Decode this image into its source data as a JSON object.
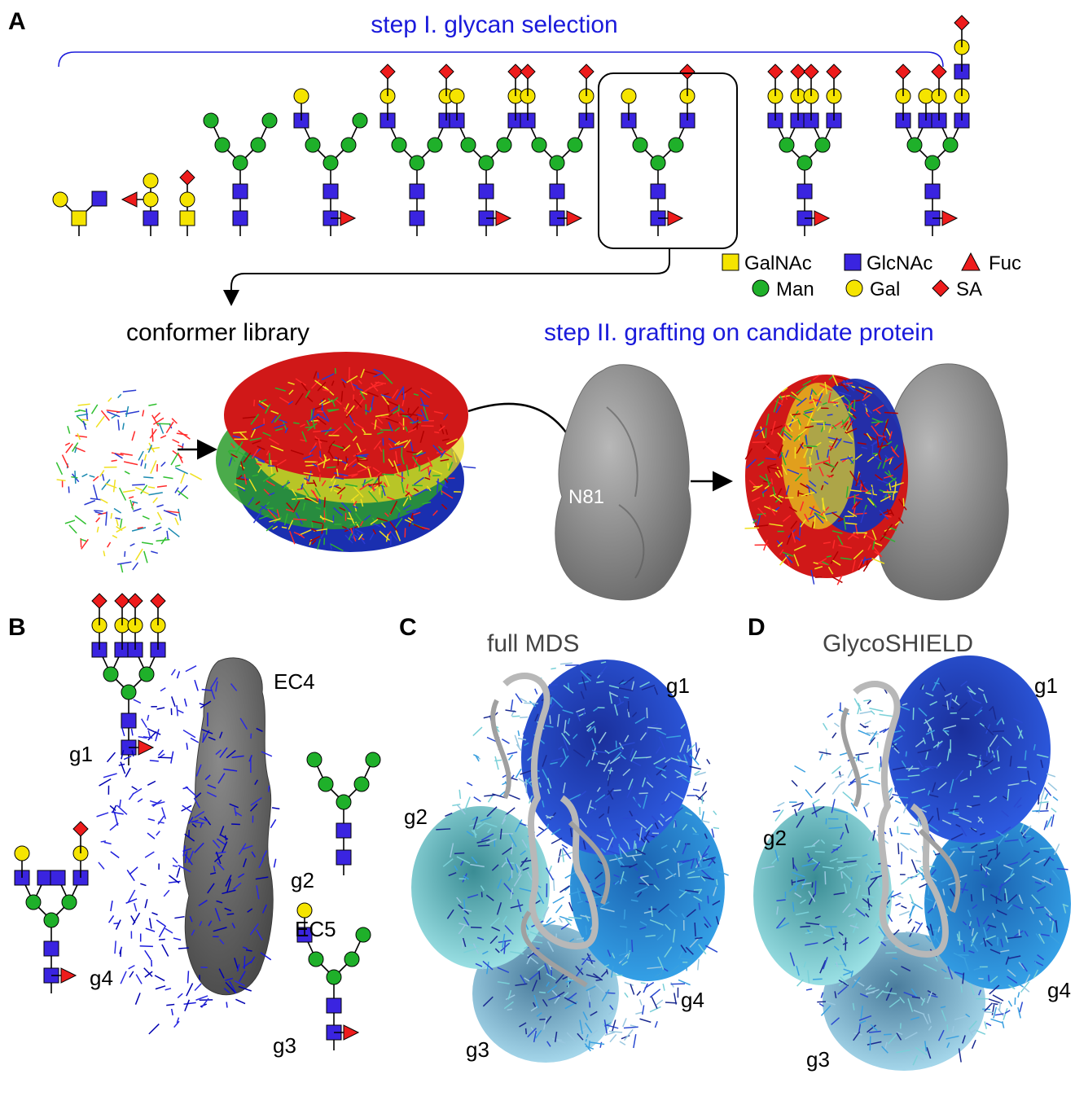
{
  "panel_letters": {
    "a": "A",
    "b": "B",
    "c": "C",
    "d": "D"
  },
  "panel_a": {
    "step1_title": "step I. glycan selection",
    "step2_title": "step II. grafting on candidate protein",
    "library_label": "conformer library",
    "site_label": "N81",
    "legend": [
      {
        "name": "GalNAc",
        "shape": "square",
        "color": "#f5e400"
      },
      {
        "name": "GlcNAc",
        "shape": "square",
        "color": "#3a24e0"
      },
      {
        "name": "Fuc",
        "shape": "triangle",
        "color": "#ee1c1c"
      },
      {
        "name": "Man",
        "shape": "circle",
        "color": "#1fb02a"
      },
      {
        "name": "Gal",
        "shape": "circle",
        "color": "#f5e400"
      },
      {
        "name": "SA",
        "shape": "diamond",
        "color": "#ee1c1c"
      }
    ]
  },
  "panel_b": {
    "domains": {
      "ec4": "EC4",
      "ec5": "EC5"
    },
    "glycans": {
      "g1": "g1",
      "g2": "g2",
      "g3": "g3",
      "g4": "g4"
    }
  },
  "panel_c": {
    "title": "full MDS",
    "g1": "g1",
    "g2": "g2",
    "g3": "g3",
    "g4": "g4"
  },
  "panel_d": {
    "title": "GlycoSHIELD",
    "g1": "g1",
    "g2": "g2",
    "g3": "g3",
    "g4": "g4"
  },
  "colors": {
    "glcnac": "#3a24e0",
    "galnac": "#f5e400",
    "gal": "#f5e400",
    "man": "#1fb02a",
    "fuc": "#ee1c1c",
    "sa": "#ee1c1c",
    "title_blue": "#1a1adb",
    "protein_grey": "#8a8a8a"
  }
}
